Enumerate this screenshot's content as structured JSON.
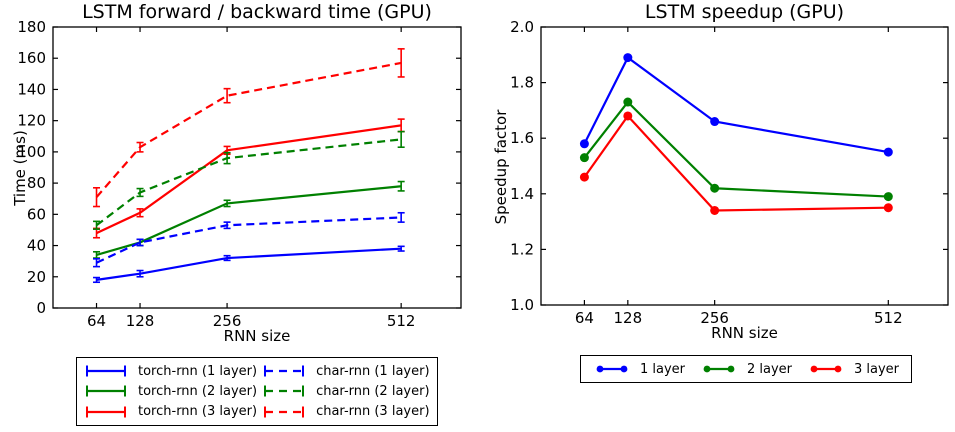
{
  "figure": {
    "background": "#ffffff",
    "accent_colors": {
      "layer1": "#0000ff",
      "layer2": "#008000",
      "layer3": "#ff0000"
    }
  },
  "chart_data": [
    {
      "type": "line",
      "title": "LSTM forward / backward time (GPU)",
      "xlabel": "RNN size",
      "ylabel": "Time (ms)",
      "x": [
        64,
        128,
        256,
        512
      ],
      "xticks": [
        64,
        128,
        256,
        512
      ],
      "xlim": [
        0,
        600
      ],
      "ylim": [
        0,
        180
      ],
      "yticks": [
        0,
        20,
        40,
        60,
        80,
        100,
        120,
        140,
        160,
        180
      ],
      "ytick_decimals": 0,
      "grid": false,
      "legend_position": "below-box-2col",
      "series": [
        {
          "name": "torch-rnn (1 layer)",
          "color": "#0000ff",
          "line": "solid",
          "marker": "errorbar",
          "values": [
            18,
            22,
            32,
            38
          ],
          "yerr": [
            1.5,
            2,
            1.5,
            1.5
          ]
        },
        {
          "name": "torch-rnn (2 layer)",
          "color": "#008000",
          "line": "solid",
          "marker": "errorbar",
          "values": [
            34,
            42,
            67,
            78
          ],
          "yerr": [
            2,
            2,
            2,
            3
          ]
        },
        {
          "name": "torch-rnn (3 layer)",
          "color": "#ff0000",
          "line": "solid",
          "marker": "errorbar",
          "values": [
            48,
            61,
            101,
            117
          ],
          "yerr": [
            3,
            2.5,
            2.5,
            4
          ]
        },
        {
          "name": "char-rnn (1 layer)",
          "color": "#0000ff",
          "line": "dashed",
          "marker": "errorbar",
          "values": [
            29,
            42,
            53,
            58
          ],
          "yerr": [
            2.5,
            2,
            2,
            3
          ]
        },
        {
          "name": "char-rnn (2 layer)",
          "color": "#008000",
          "line": "dashed",
          "marker": "errorbar",
          "values": [
            53,
            74,
            96,
            108
          ],
          "yerr": [
            2.5,
            2.5,
            3.5,
            5
          ]
        },
        {
          "name": "char-rnn (3 layer)",
          "color": "#ff0000",
          "line": "dashed",
          "marker": "errorbar",
          "values": [
            71,
            103,
            136,
            157
          ],
          "yerr": [
            6,
            3,
            4.5,
            9
          ]
        }
      ]
    },
    {
      "type": "line",
      "title": "LSTM speedup (GPU)",
      "xlabel": "RNN size",
      "ylabel": "Speedup factor",
      "x": [
        64,
        128,
        256,
        512
      ],
      "xticks": [
        64,
        128,
        256,
        512
      ],
      "xlim": [
        0,
        600
      ],
      "ylim": [
        1.0,
        2.0
      ],
      "yticks": [
        1.0,
        1.2,
        1.4,
        1.6,
        1.8,
        2.0
      ],
      "ytick_decimals": 1,
      "grid": false,
      "legend_position": "below-box-row",
      "series": [
        {
          "name": "1 layer",
          "color": "#0000ff",
          "line": "solid",
          "marker": "circle",
          "values": [
            1.58,
            1.89,
            1.66,
            1.55
          ]
        },
        {
          "name": "2 layer",
          "color": "#008000",
          "line": "solid",
          "marker": "circle",
          "values": [
            1.53,
            1.73,
            1.42,
            1.39
          ]
        },
        {
          "name": "3 layer",
          "color": "#ff0000",
          "line": "solid",
          "marker": "circle",
          "values": [
            1.46,
            1.68,
            1.34,
            1.35
          ]
        }
      ]
    }
  ]
}
